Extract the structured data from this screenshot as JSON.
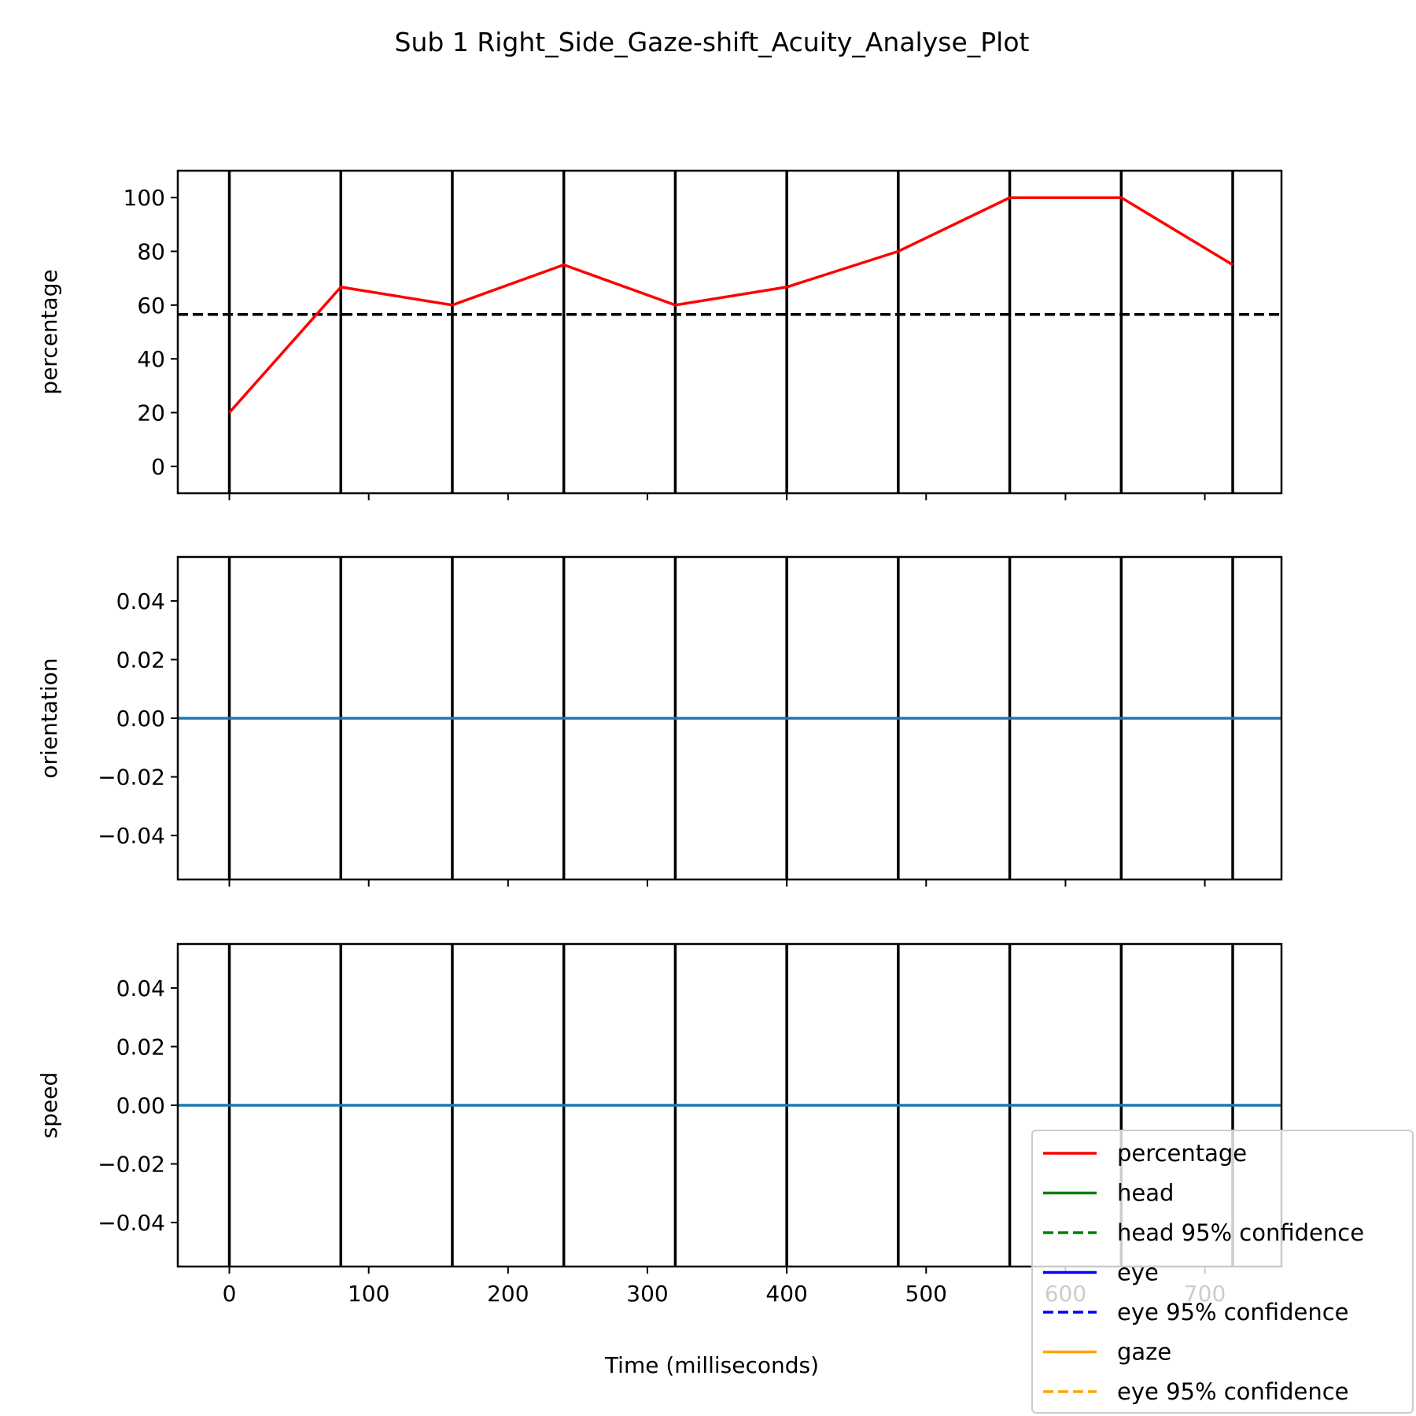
{
  "title": "Sub 1 Right_Side_Gaze-shift_Acuity_Analyse_Plot",
  "xlabel": "Time (milliseconds)",
  "chart_data": [
    {
      "type": "line",
      "ylabel": "percentage",
      "xlim": [
        -37,
        755
      ],
      "ylim": [
        -10,
        110
      ],
      "yticks": [
        0,
        20,
        40,
        60,
        80,
        100
      ],
      "ytick_labels": [
        "0",
        "20",
        "40",
        "60",
        "80",
        "100"
      ],
      "vlines": [
        0,
        80,
        160,
        240,
        320,
        400,
        480,
        560,
        640,
        720
      ],
      "hlines": [
        {
          "y": 56.5,
          "style": "dashed",
          "color": "#000000"
        }
      ],
      "series": [
        {
          "name": "percentage",
          "color": "#ff0000",
          "x": [
            0,
            80,
            160,
            240,
            320,
            400,
            480,
            560,
            640,
            720
          ],
          "y": [
            20,
            66.7,
            60,
            75,
            60,
            66.7,
            80,
            100,
            100,
            75
          ]
        }
      ],
      "grid": false
    },
    {
      "type": "line",
      "ylabel": "orientation",
      "xlim": [
        -37,
        755
      ],
      "ylim": [
        -0.055,
        0.055
      ],
      "yticks": [
        0.04,
        0.02,
        0.0,
        -0.02,
        -0.04
      ],
      "ytick_labels": [
        "0.04",
        "0.02",
        "0.00",
        "−0.02",
        "−0.04"
      ],
      "vlines": [
        0,
        80,
        160,
        240,
        320,
        400,
        480,
        560,
        640,
        720
      ],
      "series": [
        {
          "color": "#1f77b4",
          "x": [
            -37,
            755
          ],
          "y": [
            0,
            0
          ]
        }
      ],
      "grid": false
    },
    {
      "type": "line",
      "ylabel": "speed",
      "xlim": [
        -37,
        755
      ],
      "ylim": [
        -0.055,
        0.055
      ],
      "yticks": [
        0.04,
        0.02,
        0.0,
        -0.02,
        -0.04
      ],
      "ytick_labels": [
        "0.04",
        "0.02",
        "0.00",
        "−0.02",
        "−0.04"
      ],
      "xticks": [
        0,
        100,
        200,
        300,
        400,
        500,
        600,
        700
      ],
      "xtick_labels": [
        "0",
        "100",
        "200",
        "300",
        "400",
        "500",
        "600",
        "700"
      ],
      "vlines": [
        0,
        80,
        160,
        240,
        320,
        400,
        480,
        560,
        640,
        720
      ],
      "series": [
        {
          "color": "#1f77b4",
          "x": [
            -37,
            755
          ],
          "y": [
            0,
            0
          ]
        }
      ],
      "grid": false
    }
  ],
  "legend": {
    "placement": "lower-right",
    "entries": [
      {
        "label": "percentage",
        "color": "#ff0000",
        "style": "solid"
      },
      {
        "label": "head",
        "color": "#008000",
        "style": "solid"
      },
      {
        "label": "head 95% confidence",
        "color": "#008000",
        "style": "dashed"
      },
      {
        "label": "eye",
        "color": "#0000ff",
        "style": "solid"
      },
      {
        "label": "eye 95% confidence",
        "color": "#0000ff",
        "style": "dashed"
      },
      {
        "label": "gaze",
        "color": "#ffa500",
        "style": "solid"
      },
      {
        "label": "eye 95% confidence",
        "color": "#ffa500",
        "style": "dashed"
      }
    ]
  }
}
